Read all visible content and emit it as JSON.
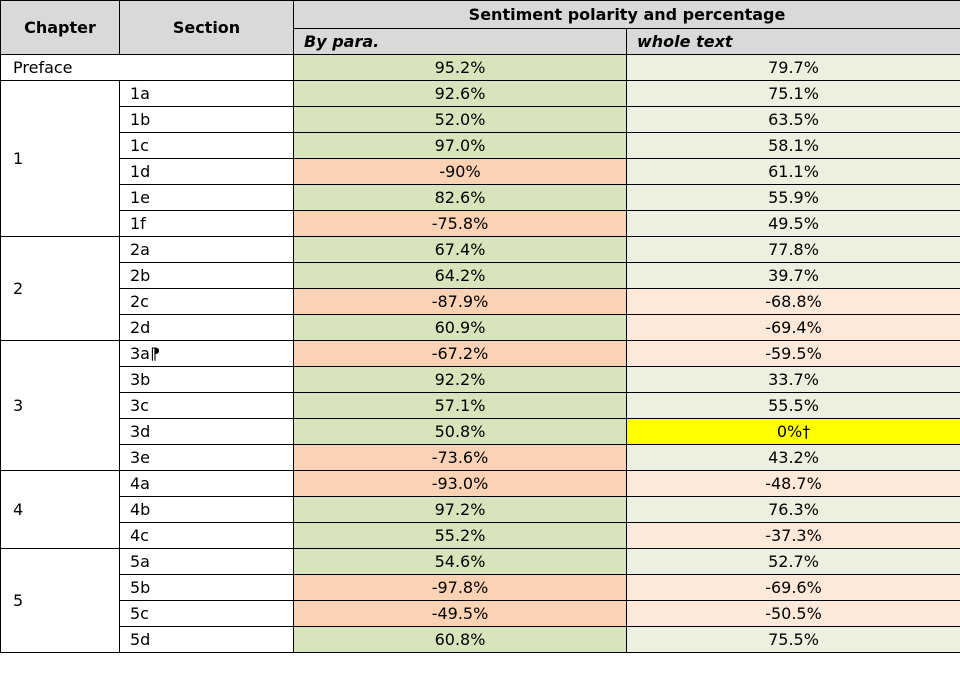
{
  "header": {
    "chapter": "Chapter",
    "section": "Section",
    "group": "Sentiment polarity and percentage",
    "by_para": "By para.",
    "whole_text": "whole text"
  },
  "preface": {
    "label": "Preface",
    "by_para": "95.2%",
    "whole": "79.7%"
  },
  "chapters": [
    {
      "label": "1",
      "rows": [
        {
          "section": "1a",
          "by_para": "92.6%",
          "whole": "75.1%"
        },
        {
          "section": "1b",
          "by_para": "52.0%",
          "whole": "63.5%"
        },
        {
          "section": "1c",
          "by_para": "97.0%",
          "whole": "58.1%"
        },
        {
          "section": "1d",
          "by_para": "-90%",
          "whole": "61.1%"
        },
        {
          "section": "1e",
          "by_para": "82.6%",
          "whole": "55.9%"
        },
        {
          "section": "1f",
          "by_para": "-75.8%",
          "whole": "49.5%"
        }
      ]
    },
    {
      "label": "2",
      "rows": [
        {
          "section": "2a",
          "by_para": "67.4%",
          "whole": "77.8%"
        },
        {
          "section": "2b",
          "by_para": "64.2%",
          "whole": "39.7%"
        },
        {
          "section": "2c",
          "by_para": "-87.9%",
          "whole": "-68.8%"
        },
        {
          "section": "2d",
          "by_para": "60.9%",
          "whole": "-69.4%"
        }
      ]
    },
    {
      "label": "3",
      "rows": [
        {
          "section": "3a⁋",
          "by_para": "-67.2%",
          "whole": "-59.5%"
        },
        {
          "section": "3b",
          "by_para": "92.2%",
          "whole": "33.7%"
        },
        {
          "section": "3c",
          "by_para": "57.1%",
          "whole": "55.5%"
        },
        {
          "section": "3d",
          "by_para": "50.8%",
          "whole": "0%†",
          "highlight": "#ffff00"
        },
        {
          "section": "3e",
          "by_para": "-73.6%",
          "whole": "43.2%"
        }
      ]
    },
    {
      "label": "4",
      "rows": [
        {
          "section": "4a",
          "by_para": "-93.0%",
          "whole": "-48.7%"
        },
        {
          "section": "4b",
          "by_para": "97.2%",
          "whole": "76.3%"
        },
        {
          "section": "4c",
          "by_para": "55.2%",
          "whole": "-37.3%"
        }
      ]
    },
    {
      "label": "5",
      "rows": [
        {
          "section": "5a",
          "by_para": "54.6%",
          "whole": "52.7%"
        },
        {
          "section": "5b",
          "by_para": "-97.8%",
          "whole": "-69.6%"
        },
        {
          "section": "5c",
          "by_para": "-49.5%",
          "whole": "-50.5%"
        },
        {
          "section": "5d",
          "by_para": "60.8%",
          "whole": "75.5%"
        }
      ]
    }
  ]
}
